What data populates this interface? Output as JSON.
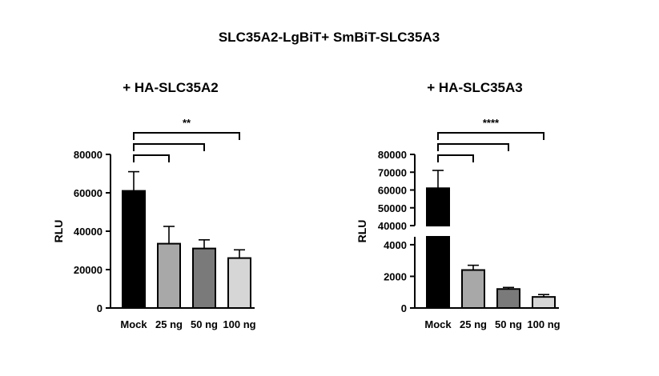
{
  "figure_title": "SLC35A2-LgBiT+ SmBiT-SLC35A3",
  "chart_data": [
    {
      "type": "bar",
      "title": "+ HA-SLC35A2",
      "ylabel": "RLU",
      "xlabel": "",
      "categories": [
        "Mock",
        "25 ng",
        "50 ng",
        "100 ng"
      ],
      "values": [
        61000,
        33500,
        31000,
        26000
      ],
      "errors": [
        10000,
        9000,
        4500,
        4300
      ],
      "bar_colors": [
        "#000000",
        "#a8a8a8",
        "#7a7a7a",
        "#d6d6d6"
      ],
      "ylim": [
        0,
        80000
      ],
      "yticks": [
        0,
        20000,
        40000,
        60000,
        80000
      ],
      "ytick_labels": [
        "0",
        "20000",
        "40000",
        "60000",
        "80000"
      ],
      "significance": [
        {
          "from": "Mock",
          "to": "25 ng",
          "label": ""
        },
        {
          "from": "Mock",
          "to": "50 ng",
          "label": ""
        },
        {
          "from": "Mock",
          "to": "100 ng",
          "label": "**"
        }
      ]
    },
    {
      "type": "bar",
      "title": "+ HA-SLC35A3",
      "ylabel": "RLU",
      "xlabel": "",
      "categories": [
        "Mock",
        "25 ng",
        "50 ng",
        "100 ng"
      ],
      "values": [
        61000,
        2400,
        1200,
        700
      ],
      "errors": [
        10000,
        300,
        100,
        150
      ],
      "bar_colors": [
        "#000000",
        "#a8a8a8",
        "#7a7a7a",
        "#d6d6d6"
      ],
      "axis_break": {
        "lower": [
          0,
          4500
        ],
        "upper": [
          40000,
          80000
        ]
      },
      "yticks_lower": [
        0,
        2000,
        4000
      ],
      "ytick_labels_lower": [
        "0",
        "2000",
        "4000"
      ],
      "yticks_upper": [
        40000,
        50000,
        60000,
        70000,
        80000
      ],
      "ytick_labels_upper": [
        "40000",
        "50000",
        "60000",
        "70000",
        "80000"
      ],
      "significance": [
        {
          "from": "Mock",
          "to": "25 ng",
          "label": ""
        },
        {
          "from": "Mock",
          "to": "50 ng",
          "label": ""
        },
        {
          "from": "Mock",
          "to": "100 ng",
          "label": "****"
        }
      ]
    }
  ]
}
